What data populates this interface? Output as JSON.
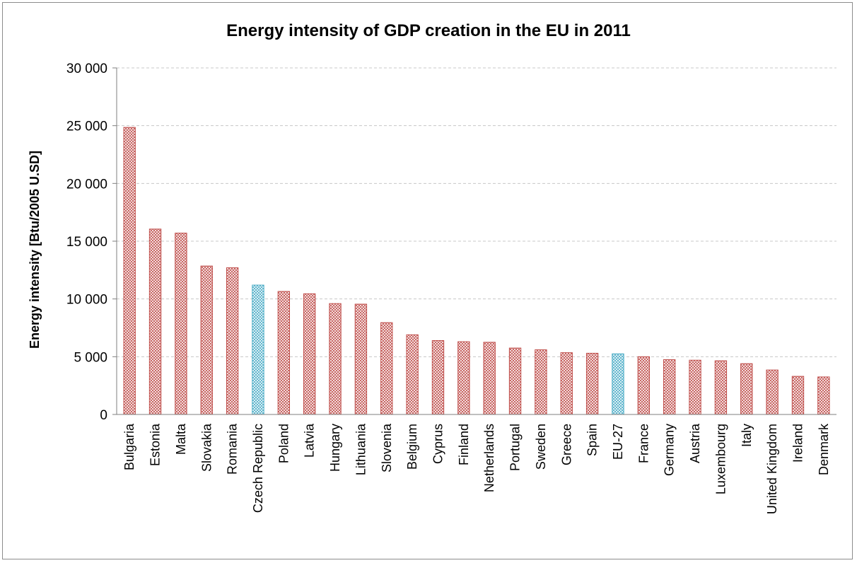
{
  "chart_data": {
    "type": "bar",
    "title": "Energy intensity of GDP creation in the EU in 2011",
    "xlabel": "",
    "ylabel": "Energy intensity [Btu/2005 U.SD]",
    "ylim": [
      0,
      30000
    ],
    "yticks": [
      0,
      5000,
      10000,
      15000,
      20000,
      25000,
      30000
    ],
    "ytick_labels": [
      "0",
      "5 000",
      "10 000",
      "15 000",
      "20 000",
      "25 000",
      "30 000"
    ],
    "grid": "horizontal dashed",
    "categories": [
      "Bulgaria",
      "Estonia",
      "Malta",
      "Slovakia",
      "Romania",
      "Czech Republic",
      "Poland",
      "Latvia",
      "Hungary",
      "Lithuania",
      "Slovenia",
      "Belgium",
      "Cyprus",
      "Finland",
      "Netherlands",
      "Portugal",
      "Sweden",
      "Greece",
      "Spain",
      "EU-27",
      "France",
      "Germany",
      "Austria",
      "Luxembourg",
      "Italy",
      "United Kingdom",
      "Ireland",
      "Denmark"
    ],
    "values": [
      24850,
      16050,
      15700,
      12850,
      12700,
      11200,
      10650,
      10450,
      9600,
      9550,
      7950,
      6900,
      6400,
      6300,
      6250,
      5750,
      5600,
      5350,
      5300,
      5250,
      5000,
      4750,
      4700,
      4650,
      4400,
      3850,
      3300,
      3250
    ],
    "highlighted": [
      "Czech Republic",
      "EU-27"
    ],
    "colors": {
      "default": "#c0504d",
      "highlight": "#4bacc6"
    }
  }
}
